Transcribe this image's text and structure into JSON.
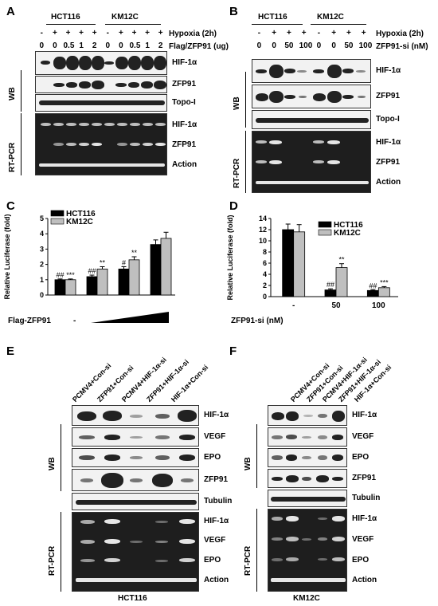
{
  "panels": {
    "A": {
      "letter": "A",
      "cell1": "HCT116",
      "cell2": "KM12C",
      "row1": [
        "-",
        "+",
        "+",
        "+",
        "+",
        "-",
        "+",
        "+",
        "+",
        "+"
      ],
      "row1_label": "Hypoxia (2h)",
      "row2": [
        "0",
        "0",
        "0.5",
        "1",
        "2",
        "0",
        "0",
        "0.5",
        "1",
        "2"
      ],
      "row2_label": "Flag/ZFP91 (ug)",
      "wb_label": "WB",
      "pcr_label": "RT-PCR",
      "wb_rows": [
        "HIF-1α",
        "ZFP91",
        "Topo-I"
      ],
      "pcr_rows": [
        "HIF-1α",
        "ZFP91",
        "Action"
      ]
    },
    "B": {
      "letter": "B",
      "cell1": "HCT116",
      "cell2": "KM12C",
      "row1": [
        "-",
        "+",
        "+",
        "+",
        "-",
        "+",
        "+",
        "+"
      ],
      "row1_label": "Hypoxia (2h)",
      "row2": [
        "0",
        "0",
        "50",
        "100",
        "0",
        "0",
        "50",
        "100"
      ],
      "row2_label": "ZFP91-si (nM)",
      "wb_label": "WB",
      "pcr_label": "RT-PCR",
      "wb_rows": [
        "HIF-1α",
        "ZFP91",
        "Topo-I"
      ],
      "pcr_rows": [
        "HIF-1α",
        "ZFP91",
        "Action"
      ]
    },
    "C": {
      "letter": "C",
      "treatment_label": "Flag-ZFP91",
      "minus": "-"
    },
    "D": {
      "letter": "D",
      "treatment_label": "ZFP91-si (nM)"
    },
    "E": {
      "letter": "E",
      "lanes": [
        "PCMV4+Con-si",
        "ZFP91+Con-si",
        "PCMV4+HIF-1α-si",
        "ZFP91+HIF-1α-si",
        "HIF-1α+Con-si"
      ],
      "wb_label": "WB",
      "pcr_label": "RT-PCR",
      "wb_rows": [
        "HIF-1α",
        "VEGF",
        "EPO",
        "ZFP91",
        "Tubulin"
      ],
      "pcr_rows": [
        "HIF-1α",
        "VEGF",
        "EPO",
        "Action"
      ],
      "cell": "HCT116"
    },
    "F": {
      "letter": "F",
      "lanes": [
        "PCMV4+Con-si",
        "ZFP91+Con-si",
        "PCMV4+HIF-1α-si",
        "ZFP91+HIF-1α-si",
        "HIF-1α+Con-si"
      ],
      "wb_label": "WB",
      "pcr_label": "RT-PCR",
      "wb_rows": [
        "HIF-1α",
        "VEGF",
        "EPO",
        "ZFP91",
        "Tubulin"
      ],
      "pcr_rows": [
        "HIF-1α",
        "VEGF",
        "EPO",
        "Action"
      ],
      "cell": "KM12C"
    }
  },
  "chart_data": [
    {
      "type": "bar",
      "panel": "C",
      "ylabel": "Relative Luciferase (fold)",
      "ylim": [
        0,
        5
      ],
      "yticks": [
        "0",
        "1",
        "2",
        "3",
        "4",
        "5"
      ],
      "groups": 4,
      "x_tick_labels": [
        "-",
        "",
        "",
        ""
      ],
      "series": [
        {
          "name": "HCT116",
          "values": [
            1.0,
            1.2,
            1.7,
            3.3
          ],
          "errors": [
            0.05,
            0.1,
            0.15,
            0.3
          ],
          "color": "#000000"
        },
        {
          "name": "KM12C",
          "values": [
            1.0,
            1.7,
            2.3,
            3.7
          ],
          "errors": [
            0.05,
            0.15,
            0.2,
            0.4
          ],
          "color": "#bfbfbf"
        }
      ],
      "annotations": [
        {
          "group": 0,
          "series": 0,
          "text": "##"
        },
        {
          "group": 0,
          "series": 1,
          "text": "***"
        },
        {
          "group": 1,
          "series": 0,
          "text": "##"
        },
        {
          "group": 1,
          "series": 1,
          "text": "**"
        },
        {
          "group": 2,
          "series": 0,
          "text": "#"
        },
        {
          "group": 2,
          "series": 1,
          "text": "**"
        }
      ],
      "legend": "top-left"
    },
    {
      "type": "bar",
      "panel": "D",
      "ylabel": "Relative Luciferase (fold)",
      "ylim": [
        0,
        14
      ],
      "yticks": [
        "0",
        "2",
        "4",
        "6",
        "8",
        "10",
        "12",
        "14"
      ],
      "categories": [
        "-",
        "50",
        "100"
      ],
      "series": [
        {
          "name": "HCT116",
          "values": [
            12.0,
            1.2,
            1.1
          ],
          "errors": [
            1.0,
            0.2,
            0.15
          ],
          "color": "#000000"
        },
        {
          "name": "KM12C",
          "values": [
            11.6,
            5.2,
            1.6
          ],
          "errors": [
            1.3,
            0.7,
            0.2
          ],
          "color": "#bfbfbf"
        }
      ],
      "annotations": [
        {
          "group": 1,
          "series": 0,
          "text": "##"
        },
        {
          "group": 1,
          "series": 1,
          "text": "**"
        },
        {
          "group": 2,
          "series": 0,
          "text": "##"
        },
        {
          "group": 2,
          "series": 1,
          "text": "***"
        }
      ],
      "legend": "top-right"
    }
  ]
}
